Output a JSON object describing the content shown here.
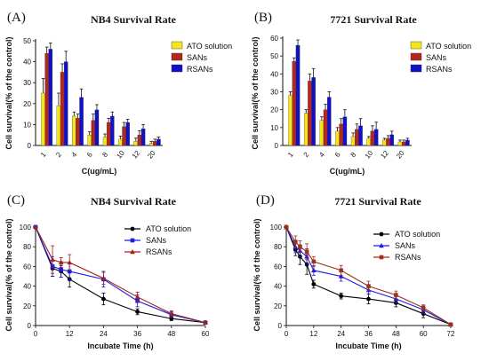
{
  "chart_data": [
    {
      "panel": "(A)",
      "title": "NB4 Survival Rate",
      "type": "bar",
      "xlabel": "C(ug/mL)",
      "ylabel": "Cell survival(% of the control)",
      "ylim": [
        0,
        50
      ],
      "yticks": [
        0,
        10,
        20,
        30,
        40,
        50
      ],
      "categories": [
        "1",
        "2",
        "4",
        "6",
        "8",
        "10",
        "12",
        "20"
      ],
      "category_label_rotation": "diagonal",
      "legend": "top-right",
      "series": [
        {
          "name": "ATO solution",
          "color": "#f5e61a",
          "values": [
            25,
            19,
            14,
            5,
            4,
            3,
            2,
            1
          ],
          "errors": [
            7,
            6,
            2,
            1.5,
            1.5,
            1.5,
            1.5,
            1
          ]
        },
        {
          "name": "SANs",
          "color": "#b5261e",
          "values": [
            44,
            35,
            13,
            12,
            11,
            9,
            5,
            2
          ],
          "errors": [
            3,
            4,
            2,
            3,
            2,
            2,
            2,
            1
          ]
        },
        {
          "name": "RSANs",
          "color": "#1010c8",
          "values": [
            46,
            40,
            23,
            17,
            14,
            11,
            8,
            3
          ],
          "errors": [
            3,
            5,
            4,
            2.5,
            2,
            1.5,
            2,
            1
          ]
        }
      ]
    },
    {
      "panel": "(B)",
      "title": "7721 Survival Rate",
      "type": "bar",
      "xlabel": "C(ug/mL)",
      "ylabel": "Cell survival(% of the control)",
      "ylim": [
        0,
        60
      ],
      "yticks": [
        0,
        10,
        20,
        30,
        40,
        50,
        60
      ],
      "categories": [
        "1",
        "2",
        "4",
        "6",
        "8",
        "10",
        "12",
        "20"
      ],
      "category_label_rotation": "diagonal",
      "legend": "top-right",
      "series": [
        {
          "name": "ATO solution",
          "color": "#f5e61a",
          "values": [
            28,
            18,
            14,
            8,
            5,
            4,
            3,
            2
          ],
          "errors": [
            2,
            2,
            2,
            2,
            2,
            1,
            1,
            1
          ]
        },
        {
          "name": "SANs",
          "color": "#b5261e",
          "values": [
            47,
            36,
            20,
            12,
            9,
            8,
            4,
            2
          ],
          "errors": [
            2,
            4,
            3,
            3,
            3,
            3,
            1.5,
            1
          ]
        },
        {
          "name": "RSANs",
          "color": "#1010c8",
          "values": [
            56,
            38,
            27,
            16,
            11,
            9,
            6,
            3
          ],
          "errors": [
            3,
            5,
            3,
            4,
            4,
            4,
            2,
            1
          ]
        }
      ]
    },
    {
      "panel": "(C)",
      "title": "NB4 Survival Rate",
      "type": "line",
      "xlabel": "Incubate Time (h)",
      "ylabel": "Cell survival(% of the control)",
      "xlim": [
        0,
        60
      ],
      "xticks": [
        0,
        12,
        24,
        36,
        48,
        60
      ],
      "ylim": [
        0,
        100
      ],
      "yticks": [
        0,
        20,
        40,
        60,
        80,
        100
      ],
      "x": [
        0,
        6,
        9,
        12,
        24,
        36,
        48,
        60
      ],
      "legend": "top-right",
      "series": [
        {
          "name": "ATO solution",
          "color": "#000000",
          "marker": "circle",
          "values": [
            100,
            58,
            55,
            47,
            27,
            14,
            7,
            3
          ],
          "errors": [
            0,
            8,
            6,
            8,
            6,
            3,
            2,
            1
          ]
        },
        {
          "name": "SANs",
          "color": "#1a1ae6",
          "marker": "square",
          "values": [
            100,
            60,
            57,
            55,
            47,
            25,
            11,
            3
          ],
          "errors": [
            0,
            10,
            8,
            9,
            8,
            6,
            3,
            1
          ]
        },
        {
          "name": "RSANs",
          "color": "#a02020",
          "marker": "triangle",
          "values": [
            100,
            67,
            64,
            64,
            48,
            29,
            12,
            3
          ],
          "errors": [
            0,
            14,
            5,
            8,
            6,
            5,
            3,
            1
          ]
        }
      ]
    },
    {
      "panel": "(D)",
      "title": "7721 Survival Rate",
      "type": "line",
      "xlabel": "Incubate Time (h)",
      "ylabel": "Cell survival(% of the control)",
      "xlim": [
        0,
        72
      ],
      "xticks": [
        0,
        12,
        24,
        36,
        48,
        60,
        72
      ],
      "ylim": [
        0,
        100
      ],
      "yticks": [
        0,
        20,
        40,
        60,
        80,
        100
      ],
      "x": [
        0,
        4,
        6,
        9,
        12,
        24,
        36,
        48,
        60,
        72
      ],
      "legend": "top-right",
      "series": [
        {
          "name": "ATO solution",
          "color": "#000000",
          "marker": "circle",
          "values": [
            100,
            77,
            70,
            62,
            42,
            30,
            27,
            23,
            12,
            1
          ],
          "errors": [
            0,
            6,
            8,
            10,
            4,
            3,
            5,
            4,
            4,
            1
          ]
        },
        {
          "name": "SANs",
          "color": "#1a1ae6",
          "marker": "triangle",
          "values": [
            100,
            80,
            76,
            70,
            56,
            50,
            36,
            27,
            16,
            1
          ],
          "errors": [
            0,
            6,
            6,
            8,
            5,
            5,
            4,
            4,
            4,
            1
          ]
        },
        {
          "name": "RSANs",
          "color": "#a0301a",
          "marker": "square",
          "values": [
            100,
            85,
            80,
            75,
            65,
            56,
            40,
            31,
            18,
            1
          ],
          "errors": [
            0,
            6,
            6,
            8,
            5,
            5,
            5,
            4,
            3,
            1
          ]
        }
      ]
    }
  ]
}
